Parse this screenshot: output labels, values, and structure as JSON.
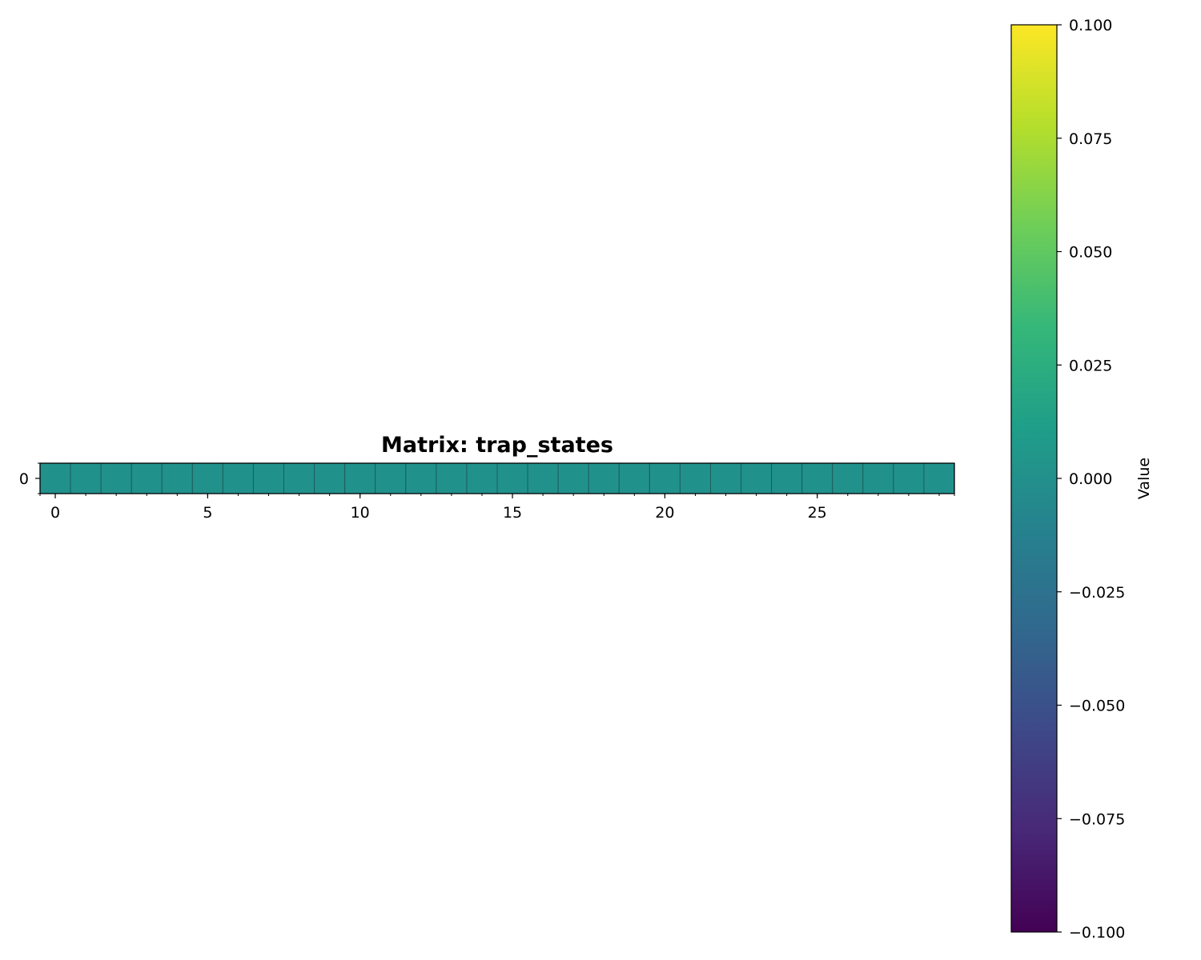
{
  "chart_data": {
    "type": "heatmap",
    "title": "Matrix: trap_states",
    "rows": 1,
    "cols": 30,
    "values": [
      [
        0,
        0,
        0,
        0,
        0,
        0,
        0,
        0,
        0,
        0,
        0,
        0,
        0,
        0,
        0,
        0,
        0,
        0,
        0,
        0,
        0,
        0,
        0,
        0,
        0,
        0,
        0,
        0,
        0,
        0
      ]
    ],
    "x_ticks": [
      0,
      5,
      10,
      15,
      20,
      25
    ],
    "x_tick_labels": [
      "0",
      "5",
      "10",
      "15",
      "20",
      "25"
    ],
    "y_ticks": [
      0
    ],
    "y_tick_labels": [
      "0"
    ],
    "colormap": "viridis",
    "cell_color": "#21918c",
    "cell_edge_color": "#1a5f5c",
    "colorbar": {
      "label": "Value",
      "range": [
        -0.1,
        0.1
      ],
      "ticks": [
        0.1,
        0.075,
        0.05,
        0.025,
        0.0,
        -0.025,
        -0.05,
        -0.075,
        -0.1
      ],
      "tick_labels": [
        "0.100",
        "0.075",
        "0.050",
        "0.025",
        "0.000",
        "−0.025",
        "−0.050",
        "−0.075",
        "−0.100"
      ],
      "gradient_stops": [
        "#440154",
        "#482878",
        "#3e4989",
        "#31688e",
        "#26828e",
        "#1f9e89",
        "#35b779",
        "#6ece58",
        "#b5de2b",
        "#fde725"
      ]
    }
  }
}
